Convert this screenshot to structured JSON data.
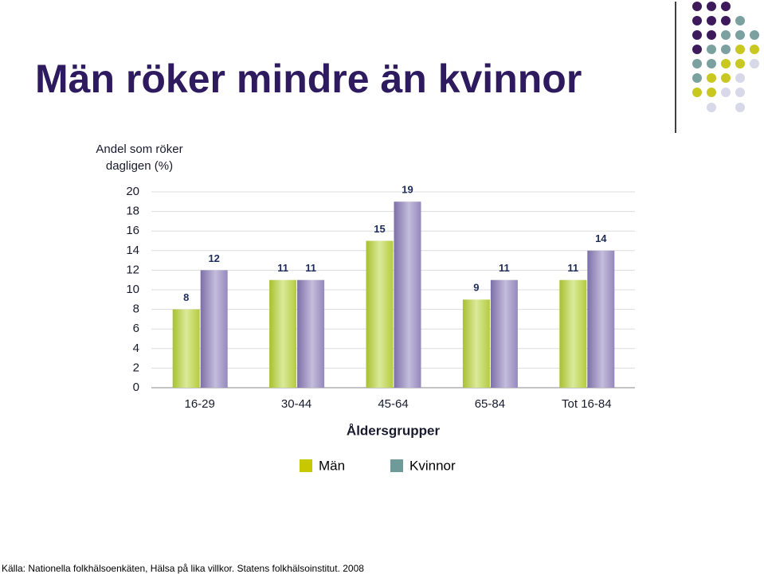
{
  "chart_data": {
    "type": "bar",
    "title": "Män röker mindre än kvinnor",
    "y_label": "Andel som röker dagligen (%)",
    "x_label": "Åldersgrupper",
    "source": "Källa: Nationella folkhälsoenkäten, Hälsa på lika villkor. Statens folkhälsoinstitut. 2008",
    "categories": [
      "16-29",
      "30-44",
      "45-64",
      "65-84",
      "Tot 16-84"
    ],
    "series": [
      {
        "name": "Män",
        "color": "#b4cc3c",
        "legend_color": "#c8c800",
        "values": [
          8,
          11,
          15,
          9,
          11
        ]
      },
      {
        "name": "Kvinnor",
        "color": "#9488bc",
        "legend_color": "#6f9a9a",
        "values": [
          12,
          11,
          19,
          11,
          14
        ]
      }
    ],
    "ylim": [
      0,
      20
    ],
    "yticks": [
      0,
      2,
      4,
      6,
      8,
      10,
      12,
      14,
      16,
      18,
      20
    ],
    "grid": true
  }
}
